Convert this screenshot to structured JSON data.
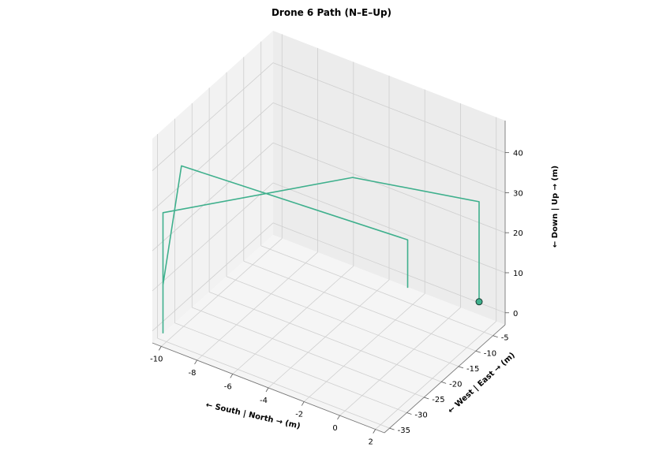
{
  "chart_data": {
    "type": "line3d",
    "title": "Drone 6 Path (N–E–Up)",
    "xlabel": "← South | North → (m)",
    "ylabel": "← West | East → (m)",
    "zlabel": "← Down | Up → (m)",
    "xlim": [
      -10.5,
      2.5
    ],
    "ylim": [
      -36.5,
      -1.5
    ],
    "zlim": [
      -3,
      48
    ],
    "xticks": [
      -10,
      -8,
      -6,
      -4,
      -2,
      0,
      2
    ],
    "yticks": [
      -35,
      -30,
      -25,
      -20,
      -15,
      -10,
      -5
    ],
    "zticks": [
      0,
      10,
      20,
      30,
      40
    ],
    "grid": true,
    "series": [
      {
        "color": "#3fb08d",
        "points": [
          [
            1.0,
            -1.3,
            0.0
          ],
          [
            1.0,
            -1.3,
            25.0
          ],
          [
            -1.5,
            -25.0,
            45.0
          ],
          [
            -10.0,
            -36.0,
            30.0
          ],
          [
            -10.0,
            -36.0,
            0.0
          ],
          [
            -10.0,
            -36.0,
            12.0
          ],
          [
            -10.8,
            -26.5,
            33.0
          ],
          [
            -2.4,
            -4.4,
            12.0
          ],
          [
            -2.4,
            -4.4,
            0.0
          ]
        ]
      }
    ],
    "start_marker": {
      "point": [
        1.0,
        -1.3,
        0.0
      ],
      "color": "#3fb08d"
    }
  }
}
